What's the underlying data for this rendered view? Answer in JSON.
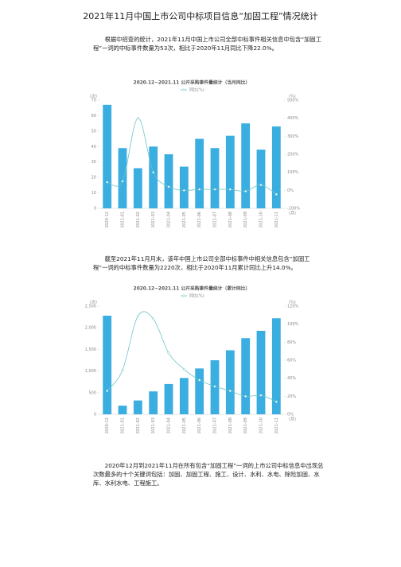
{
  "title": "2021年11月中国上市公司中标项目信息“加固工程”情况统计",
  "paragraphs": [
    "根据中招查的统计，2021年11月中国上市公司全部中标事件相关信息中包含“加固工程”一词的中标事件数量为53次，相比于2020年11月同比下降22.0%。",
    "截至2021年11月月末，该年中国上市公司全部中标事件中相关信息包含“加固工程”一词的中标事件数量为2220次，相比于2020年11月累计同比上升14.0%。",
    "2020年12月到2021年11月在所有包含“加固工程”一词的上市公司中标信息中出现总次数最多的十个关键词包括：加固、加固工程、施工、设计、水利、水电、除险加固、水库、水利水电、工程施工。"
  ],
  "chart_data": [
    {
      "type": "bar",
      "title": "2020.12~2021.11 公开采购事件量统计（当月同比）",
      "ylabel": "(次)",
      "y2label": "(%)",
      "xlabel": "(月)",
      "categories": [
        "2020-12",
        "2021-01",
        "2021-02",
        "2021-03",
        "2021-04",
        "2021-05",
        "2021-06",
        "2021-07",
        "2021-08",
        "2021-09",
        "2021-10",
        "2021-11"
      ],
      "series": [
        {
          "color": "#3aaee0",
          "values": [
            67,
            39,
            26,
            40,
            35,
            27,
            45,
            39,
            47,
            55,
            38,
            53
          ]
        },
        {
          "name": "同比(%)",
          "type": "line",
          "axis": "y2",
          "color": "#6cc3c6",
          "values": [
            45,
            50,
            400,
            100,
            20,
            0,
            5,
            5,
            5,
            -5,
            30,
            -22
          ]
        }
      ],
      "ylim": [
        0,
        70
      ],
      "yticks": [
        0,
        10,
        20,
        30,
        40,
        50,
        60,
        70
      ],
      "y2lim": [
        -100,
        500
      ],
      "y2ticks": [
        {
          "value": -100,
          "label": "-100%"
        },
        {
          "value": 0,
          "label": "0%"
        },
        {
          "value": 100,
          "label": "100%"
        },
        {
          "value": 200,
          "label": "200%"
        },
        {
          "value": 300,
          "label": "300%"
        },
        {
          "value": 400,
          "label": "400%"
        },
        {
          "value": 500,
          "label": "500%"
        }
      ]
    },
    {
      "type": "bar",
      "title": "2020.12~2021.11 公开采购事件量统计（累计同比）",
      "ylabel": "(次)",
      "y2label": "(%)",
      "xlabel": "(月)",
      "categories": [
        "2020-12",
        "2021-01",
        "2021-02",
        "2021-03",
        "2021-04",
        "2021-05",
        "2021-06",
        "2021-07",
        "2021-08",
        "2021-09",
        "2021-10",
        "2021-11"
      ],
      "series": [
        {
          "color": "#3aaee0",
          "values": [
            2280,
            200,
            320,
            530,
            700,
            840,
            1060,
            1250,
            1480,
            1760,
            1930,
            2220
          ]
        },
        {
          "name": "同比(%)",
          "type": "line",
          "axis": "y2",
          "color": "#6cc3c6",
          "values": [
            26,
            49,
            109,
            106,
            68,
            50,
            38,
            31,
            26,
            20,
            21,
            14
          ]
        }
      ],
      "ylim": [
        0,
        2500
      ],
      "yticks": [
        0,
        500,
        {
          "value": 1000,
          "label": "1,000"
        },
        {
          "value": 1500,
          "label": "1,500"
        },
        {
          "value": 2000,
          "label": "2,000"
        },
        {
          "value": 2500,
          "label": "2,500"
        }
      ],
      "y2lim": [
        0,
        120
      ],
      "y2ticks": [
        {
          "value": 0,
          "label": "0%"
        },
        {
          "value": 20,
          "label": "20%"
        },
        {
          "value": 40,
          "label": "40%"
        },
        {
          "value": 60,
          "label": "60%"
        },
        {
          "value": 80,
          "label": "80%"
        },
        {
          "value": 100,
          "label": "100%"
        },
        {
          "value": 120,
          "label": "120%"
        }
      ]
    }
  ]
}
